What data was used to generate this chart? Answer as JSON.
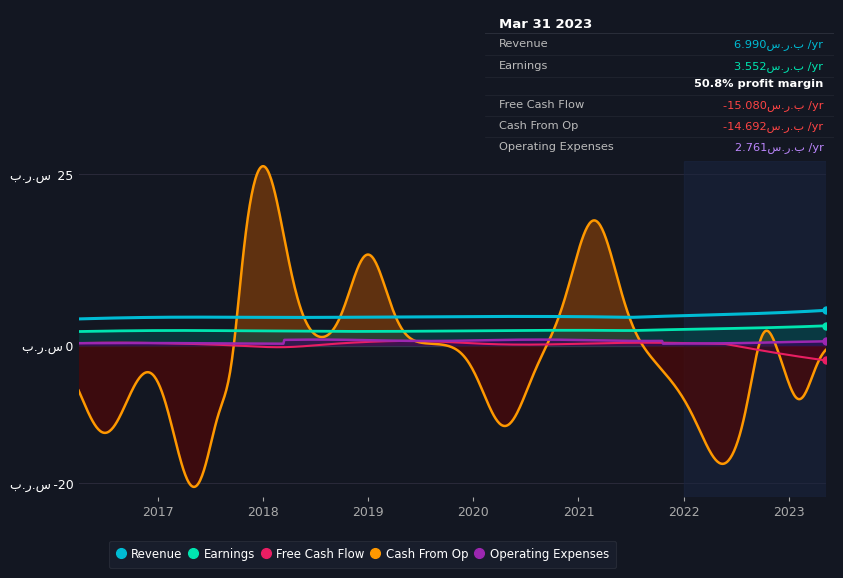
{
  "bg_color": "#131722",
  "plot_bg_color": "#131722",
  "colors": {
    "revenue": "#00bcd4",
    "earnings": "#00e5b0",
    "free_cash_flow": "#e91e63",
    "cash_from_op": "#ff9800",
    "operating_expenses": "#9c27b0"
  },
  "info_box_title": "Mar 31 2023",
  "info_box_bg": "#0d1117",
  "info_box_border": "#2a2e3a",
  "row_data": [
    {
      "label": "Revenue",
      "value": "6.990س.ر.ب /yr",
      "color": "#00bcd4",
      "bold_value": false
    },
    {
      "label": "Earnings",
      "value": "3.552س.ر.ب /yr",
      "color": "#00e5b0",
      "bold_value": false
    },
    {
      "label": "",
      "value": "50.8% profit margin",
      "color": "#ffffff",
      "bold_value": true
    },
    {
      "label": "Free Cash Flow",
      "value": "-15.080س.ر.ب /yr",
      "color": "#ff4444",
      "bold_value": false
    },
    {
      "label": "Cash From Op",
      "value": "-14.692س.ر.ب /yr",
      "color": "#ff4444",
      "bold_value": false
    },
    {
      "label": "Operating Expenses",
      "value": "2.761س.ر.ب /yr",
      "color": "#bb86fc",
      "bold_value": false
    }
  ],
  "legend_items": [
    {
      "label": "Revenue",
      "color": "#00bcd4"
    },
    {
      "label": "Earnings",
      "color": "#00e5b0"
    },
    {
      "label": "Free Cash Flow",
      "color": "#e91e63"
    },
    {
      "label": "Cash From Op",
      "color": "#ff9800"
    },
    {
      "label": "Operating Expenses",
      "color": "#9c27b0"
    }
  ],
  "ytick_vals": [
    -20,
    0,
    25
  ],
  "ytick_labels": [
    "ب.ر.س -20",
    "ب.ر.س 0",
    "ب.ر.س  25"
  ],
  "xtick_vals": [
    2017,
    2018,
    2019,
    2020,
    2021,
    2022,
    2023
  ],
  "shade_start": 2022.0,
  "shade_end": 2023.35,
  "xmin": 2016.25,
  "xmax": 2023.35,
  "ymin": -22,
  "ymax": 27
}
